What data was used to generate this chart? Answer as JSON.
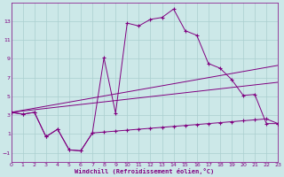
{
  "xlabel": "Windchill (Refroidissement éolien,°C)",
  "bg_color": "#cce8e8",
  "line_color": "#800080",
  "grid_color": "#aacfcf",
  "xlim": [
    0,
    23
  ],
  "ylim": [
    -2,
    15
  ],
  "xticks": [
    0,
    1,
    2,
    3,
    4,
    5,
    6,
    7,
    8,
    9,
    10,
    11,
    12,
    13,
    14,
    15,
    16,
    17,
    18,
    19,
    20,
    21,
    22,
    23
  ],
  "yticks": [
    -1,
    1,
    3,
    5,
    7,
    9,
    11,
    13
  ],
  "series1_x": [
    0,
    1,
    2,
    3,
    4,
    5,
    6,
    7,
    8,
    9,
    10,
    11,
    12,
    13,
    14,
    15,
    16,
    17,
    18,
    19,
    20,
    21,
    22,
    23
  ],
  "series1_y": [
    3.3,
    3.1,
    3.3,
    0.7,
    1.5,
    -0.7,
    -0.8,
    1.1,
    9.1,
    3.2,
    12.8,
    12.5,
    13.2,
    13.4,
    14.3,
    12.0,
    11.5,
    8.5,
    8.0,
    6.8,
    5.1,
    5.2,
    2.1,
    2.1
  ],
  "series2_x": [
    0,
    1,
    2,
    3,
    4,
    5,
    6,
    7,
    8,
    9,
    10,
    11,
    12,
    13,
    14,
    15,
    16,
    17,
    18,
    19,
    20,
    21,
    22,
    23
  ],
  "series2_y": [
    3.3,
    3.1,
    3.3,
    0.7,
    1.5,
    -0.7,
    -0.8,
    1.1,
    1.2,
    1.3,
    1.4,
    1.5,
    1.6,
    1.7,
    1.8,
    1.9,
    2.0,
    2.1,
    2.2,
    2.3,
    2.4,
    2.5,
    2.6,
    2.1
  ],
  "series3_x": [
    0,
    23
  ],
  "series3_y": [
    3.3,
    8.3
  ],
  "series4_x": [
    0,
    23
  ],
  "series4_y": [
    3.3,
    6.5
  ]
}
